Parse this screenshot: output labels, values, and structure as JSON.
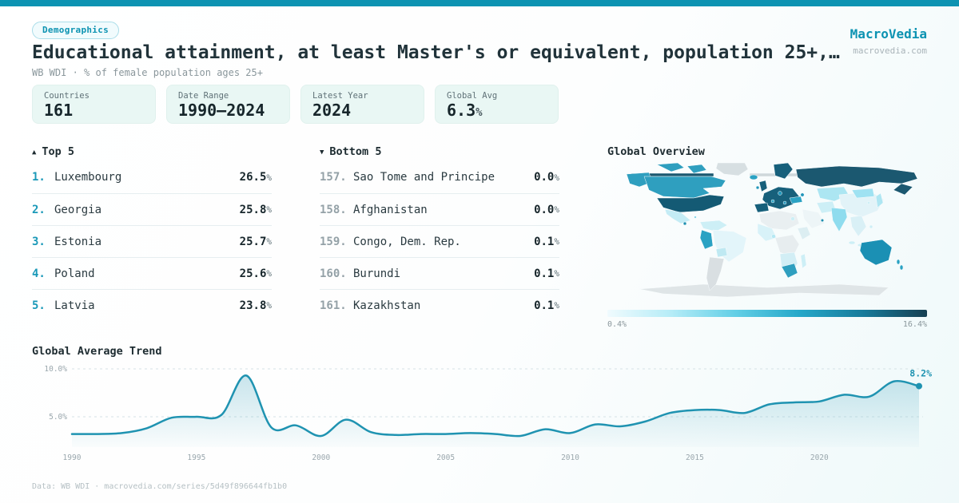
{
  "header": {
    "badge": "Demographics",
    "title": "Educational attainment, at least Master's or equivalent, population 25+,…",
    "subtitle": "WB WDI · % of female population ages 25+",
    "brand": "MacroVedia",
    "brand_domain": "macrovedia.com"
  },
  "accent_color": "#0d93b2",
  "stats": [
    {
      "label": "Countries",
      "value": "161",
      "suffix": ""
    },
    {
      "label": "Date Range",
      "value": "1990—2024",
      "suffix": ""
    },
    {
      "label": "Latest Year",
      "value": "2024",
      "suffix": ""
    },
    {
      "label": "Global Avg",
      "value": "6.3",
      "suffix": "%"
    }
  ],
  "lists": {
    "unit": "%",
    "top": {
      "icon": "▲",
      "header": "Top 5",
      "rows": [
        {
          "rank": "1.",
          "name": "Luxembourg",
          "value": "26.5"
        },
        {
          "rank": "2.",
          "name": "Georgia",
          "value": "25.8"
        },
        {
          "rank": "3.",
          "name": "Estonia",
          "value": "25.7"
        },
        {
          "rank": "4.",
          "name": "Poland",
          "value": "25.6"
        },
        {
          "rank": "5.",
          "name": "Latvia",
          "value": "23.8"
        }
      ]
    },
    "bottom": {
      "icon": "▼",
      "header": "Bottom 5",
      "rows": [
        {
          "rank": "157.",
          "name": "Sao Tome and Principe",
          "value": "0.0"
        },
        {
          "rank": "158.",
          "name": "Afghanistan",
          "value": "0.0"
        },
        {
          "rank": "159.",
          "name": "Congo, Dem. Rep.",
          "value": "0.1"
        },
        {
          "rank": "160.",
          "name": "Burundi",
          "value": "0.1"
        },
        {
          "rank": "161.",
          "name": "Kazakhstan",
          "value": "0.1"
        }
      ]
    }
  },
  "map": {
    "title": "Global Overview",
    "legend_min": "0.4%",
    "legend_max": "16.4%",
    "legend_gradient": [
      "#f0fbfe",
      "#b5ecf7",
      "#63cfe6",
      "#25a8c9",
      "#177b9b",
      "#163f52"
    ],
    "regions": {
      "antarctica": "#dfe5e7",
      "greenland": "#d7dfe2",
      "arctic-islands": "#2f9fbf",
      "arctic-coast": "#1b5870",
      "arctic-ice": "#cfd8db",
      "alaska": "#2f9fbf",
      "canada": "#2f9fbf",
      "usa": "#145a74",
      "mexico": "#c4ecf5",
      "central-america-spot": "#1d8fb0",
      "caribbean": "#7fd4e8",
      "colombia": "#cdeff6",
      "peru": "#2aa2c3",
      "brazil": "#e3f5fa",
      "bolivia": "#bfe9f2",
      "argentina": "#d9dfe2",
      "iceland": "#2aa2c3",
      "uk": "#17607b",
      "ireland": "#2196ba",
      "scandinavia": "#17607b",
      "europe": "#17607b",
      "spain": "#17607b",
      "europe-spot-1": "#2196ba",
      "europe-spot-2": "#2aa2c3",
      "europe-spot-3": "#2196ba",
      "russia": "#1b5870",
      "kazakhstan": "#ace6f2",
      "caucasus": "#2196ba",
      "turkey": "#2aa2c3",
      "iran": "#cdeff6",
      "saudi": "#edf5f7",
      "uae": "#1d8fb0",
      "india": "#8fdcee",
      "china": "#e2f3f8",
      "mongolia": "#9fe2f2",
      "indochina": "#d9f0f6",
      "philippines": "#cdeff6",
      "indonesia": "#cdeff6",
      "japan": "#aee6f2",
      "korea": "#cdeff6",
      "egypt": "#cdeff6",
      "australia": "#1b90b4",
      "new-zealand": "#2aa2c3",
      "north-africa": "#e9eff1",
      "west-africa": "#d8f2f8",
      "nigeria": "#b5e8f3",
      "central-africa": "#e7edef",
      "horn-africa": "#dceef2",
      "southern-africa": "#d2eef5",
      "south-africa": "#2f9fbf",
      "madagascar": "#cdeff6"
    }
  },
  "chart_data": {
    "type": "area",
    "title": "Global Average Trend",
    "xlabel": "",
    "ylabel": "% of female population ages 25+",
    "x": [
      1990,
      1991,
      1992,
      1993,
      1994,
      1995,
      1996,
      1997,
      1998,
      1999,
      2000,
      2001,
      2002,
      2003,
      2004,
      2005,
      2006,
      2007,
      2008,
      2009,
      2010,
      2011,
      2012,
      2013,
      2014,
      2015,
      2016,
      2017,
      2018,
      2019,
      2020,
      2021,
      2022,
      2023,
      2024
    ],
    "values": [
      3.2,
      3.2,
      3.3,
      3.8,
      4.9,
      5.0,
      5.2,
      9.3,
      3.9,
      4.1,
      3.0,
      4.7,
      3.4,
      3.1,
      3.2,
      3.2,
      3.3,
      3.2,
      3.0,
      3.7,
      3.3,
      4.2,
      4.0,
      4.5,
      5.4,
      5.7,
      5.7,
      5.4,
      6.3,
      6.5,
      6.6,
      7.3,
      7.1,
      8.7,
      8.2
    ],
    "end_label": "8.2%",
    "line_color": "#1f93b1",
    "grid": "dashed",
    "ylim": [
      2,
      10.5
    ],
    "ytick_values": [
      10,
      5
    ],
    "ytick_labels": [
      "10.0%",
      "5.0%"
    ],
    "xticks": [
      1990,
      1995,
      2000,
      2005,
      2010,
      2015,
      2020
    ]
  },
  "footer": {
    "text": "Data: WB WDI · macrovedia.com/series/5d49f896644fb1b0"
  }
}
